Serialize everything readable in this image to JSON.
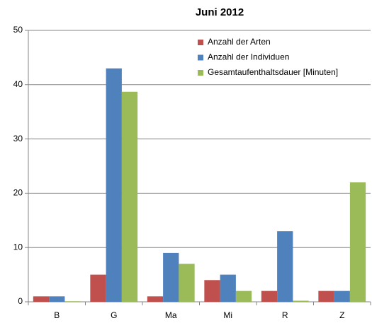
{
  "chart_data": {
    "type": "bar",
    "title": "Juni 2012",
    "categories": [
      "B",
      "G",
      "Ma",
      "Mi",
      "R",
      "Z"
    ],
    "series": [
      {
        "name": "Anzahl der Arten",
        "color": "#c0504d",
        "values": [
          1,
          5,
          1,
          4,
          2,
          2
        ]
      },
      {
        "name": "Anzahl der Individuen",
        "color": "#4f81bd",
        "values": [
          1,
          43,
          9,
          5,
          13,
          2
        ]
      },
      {
        "name": "Gesamtaufenthaltsdauer [Minuten]",
        "color": "#9bbb59",
        "values": [
          0.1,
          38.7,
          7,
          2,
          0.2,
          22
        ]
      }
    ],
    "ylim": [
      0,
      50
    ],
    "yticks": [
      0,
      10,
      20,
      30,
      40,
      50
    ],
    "grid": true,
    "legend": "top-right"
  }
}
